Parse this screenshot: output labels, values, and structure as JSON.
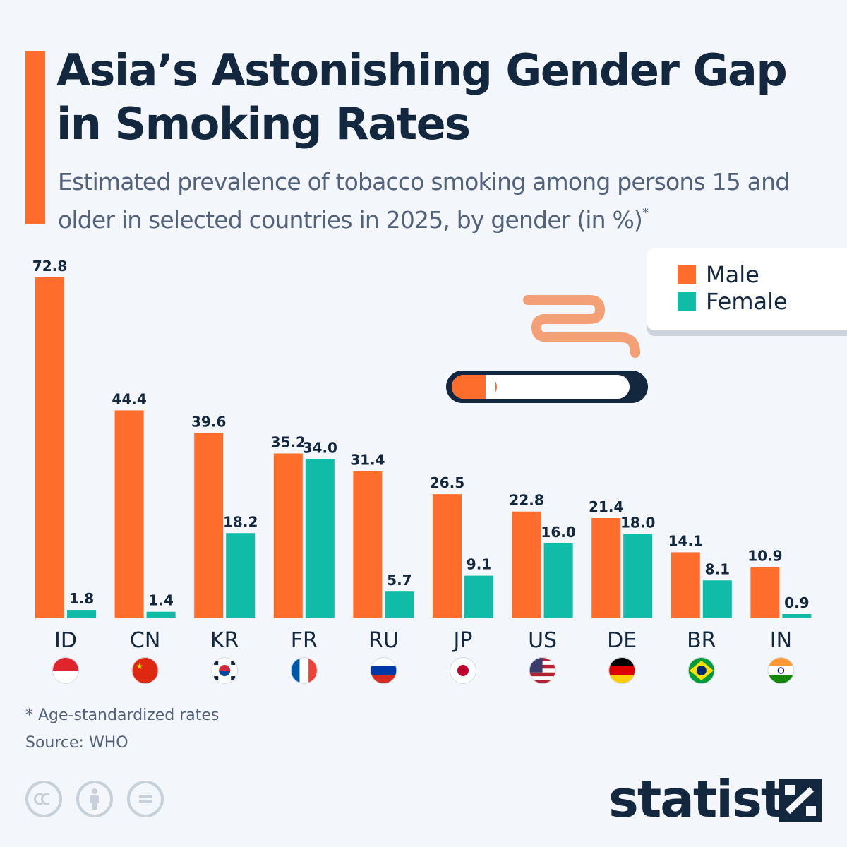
{
  "header": {
    "title": "Asia’s Astonishing Gender Gap in Smoking Rates",
    "subtitle": "Estimated prevalence of tobacco smoking among persons 15 and older in selected countries in 2025, by gender (in %)",
    "subtitle_mark": "*"
  },
  "legend": {
    "male": "Male",
    "female": "Female"
  },
  "colors": {
    "male": "#fe6d2c",
    "female": "#10bca8",
    "text": "#13273f",
    "accent": "#fe6d2c",
    "background": "#f3f6fa"
  },
  "icons": {
    "decoration": "cigarette-icon",
    "flags": [
      "indonesia-flag-icon",
      "china-flag-icon",
      "south-korea-flag-icon",
      "france-flag-icon",
      "russia-flag-icon",
      "japan-flag-icon",
      "usa-flag-icon",
      "germany-flag-icon",
      "brazil-flag-icon",
      "india-flag-icon"
    ],
    "license": [
      "cc-icon",
      "by-icon",
      "nd-icon"
    ],
    "brand": "statista-logo-icon"
  },
  "chart_data": {
    "type": "bar",
    "title": "Asia’s Astonishing Gender Gap in Smoking Rates",
    "subtitle": "Estimated prevalence of tobacco smoking among persons 15 and older in selected countries in 2025, by gender (in %)",
    "categories": [
      "ID",
      "CN",
      "KR",
      "FR",
      "RU",
      "JP",
      "US",
      "DE",
      "BR",
      "IN"
    ],
    "series": [
      {
        "name": "Male",
        "values": [
          72.8,
          44.4,
          39.6,
          35.2,
          31.4,
          26.5,
          22.8,
          21.4,
          14.1,
          10.9
        ]
      },
      {
        "name": "Female",
        "values": [
          1.8,
          1.4,
          18.2,
          34.0,
          5.7,
          9.1,
          16.0,
          18.0,
          8.1,
          0.9
        ]
      }
    ],
    "value_labels": [
      [
        "72.8",
        "44.4",
        "39.6",
        "35.2",
        "31.4",
        "26.5",
        "22.8",
        "21.4",
        "14.1",
        "10.9"
      ],
      [
        "1.8",
        "1.4",
        "18.2",
        "34.0",
        "5.7",
        "9.1",
        "16.0",
        "18.0",
        "8.1",
        "0.9"
      ]
    ],
    "xlabel": "",
    "ylabel": "",
    "ylim": [
      0,
      72.8
    ],
    "grid": false,
    "legend_position": "top-right"
  },
  "footer": {
    "footnote": "* Age-standardized rates",
    "source": "Source: WHO",
    "brand": "statista"
  }
}
